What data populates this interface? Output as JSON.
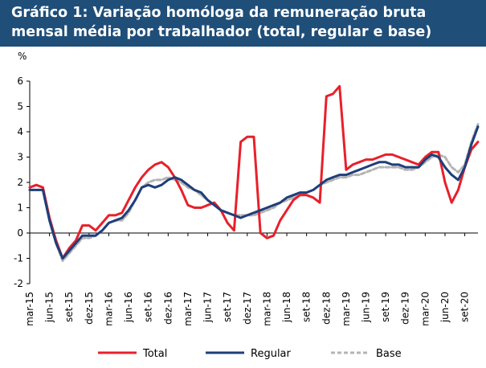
{
  "title": {
    "line1": "Gráfico 1: Variação homóloga da remuneração bruta",
    "line2": "mensal média por trabalhador (total, regular e base)"
  },
  "chart_data": {
    "type": "line",
    "unit_label": "%",
    "ylim": [
      -2,
      6
    ],
    "yticks": [
      -2,
      -1,
      0,
      1,
      2,
      3,
      4,
      5,
      6
    ],
    "grid": false,
    "legend_position": "bottom",
    "x_labels": [
      "mar-15",
      "jun-15",
      "set-15",
      "dez-15",
      "mar-16",
      "jun-16",
      "set-16",
      "dez-16",
      "mar-17",
      "jun-17",
      "set-17",
      "dez-17",
      "mar-18",
      "jun-18",
      "set-18",
      "dez-18",
      "mar-19",
      "jun-19",
      "set-19",
      "dez-19",
      "mar-20",
      "jun-20",
      "set-20"
    ],
    "x_start": "2015-03",
    "series": [
      {
        "name": "Total",
        "color": "#e8202a",
        "style": "solid",
        "values": [
          1.8,
          1.9,
          1.8,
          0.6,
          -0.3,
          -1.0,
          -0.6,
          -0.3,
          0.3,
          0.3,
          0.1,
          0.4,
          0.7,
          0.7,
          0.8,
          1.3,
          1.8,
          2.2,
          2.5,
          2.7,
          2.8,
          2.6,
          2.2,
          1.7,
          1.1,
          1.0,
          1.0,
          1.1,
          1.2,
          0.9,
          0.4,
          0.1,
          3.6,
          3.8,
          3.8,
          0.0,
          -0.2,
          -0.1,
          0.5,
          0.9,
          1.3,
          1.5,
          1.5,
          1.4,
          1.2,
          5.4,
          5.5,
          5.8,
          2.5,
          2.7,
          2.8,
          2.9,
          2.9,
          3.0,
          3.1,
          3.1,
          3.0,
          2.9,
          2.8,
          2.7,
          3.0,
          3.2,
          3.2,
          2.0,
          1.2,
          1.7,
          2.6,
          3.3,
          3.6
        ]
      },
      {
        "name": "Regular",
        "color": "#1f3e7a",
        "style": "solid",
        "values": [
          1.7,
          1.7,
          1.7,
          0.5,
          -0.4,
          -1.0,
          -0.7,
          -0.4,
          -0.1,
          -0.1,
          -0.1,
          0.1,
          0.4,
          0.5,
          0.6,
          0.9,
          1.3,
          1.8,
          1.9,
          1.8,
          1.9,
          2.1,
          2.2,
          2.1,
          1.9,
          1.7,
          1.6,
          1.3,
          1.1,
          0.9,
          0.8,
          0.7,
          0.6,
          0.7,
          0.8,
          0.9,
          1.0,
          1.1,
          1.2,
          1.4,
          1.5,
          1.6,
          1.6,
          1.7,
          1.9,
          2.1,
          2.2,
          2.3,
          2.3,
          2.4,
          2.5,
          2.6,
          2.7,
          2.8,
          2.8,
          2.7,
          2.7,
          2.6,
          2.6,
          2.6,
          2.9,
          3.1,
          3.0,
          2.6,
          2.3,
          2.1,
          2.6,
          3.5,
          4.2
        ]
      },
      {
        "name": "Base",
        "color": "#b4b4b4",
        "style": "dashed",
        "values": [
          1.7,
          1.7,
          1.7,
          0.5,
          -0.4,
          -1.1,
          -0.8,
          -0.5,
          -0.2,
          -0.2,
          -0.1,
          0.1,
          0.4,
          0.5,
          0.5,
          0.8,
          1.3,
          1.8,
          2.0,
          2.1,
          2.1,
          2.2,
          2.1,
          2.0,
          1.8,
          1.7,
          1.5,
          1.3,
          1.1,
          0.9,
          0.8,
          0.7,
          0.7,
          0.7,
          0.7,
          0.8,
          0.9,
          1.0,
          1.2,
          1.3,
          1.4,
          1.5,
          1.6,
          1.7,
          1.9,
          2.0,
          2.1,
          2.2,
          2.2,
          2.3,
          2.3,
          2.4,
          2.5,
          2.6,
          2.6,
          2.6,
          2.6,
          2.5,
          2.5,
          2.6,
          2.8,
          3.0,
          3.1,
          3.0,
          2.6,
          2.4,
          2.7,
          3.6,
          4.3
        ]
      }
    ]
  }
}
